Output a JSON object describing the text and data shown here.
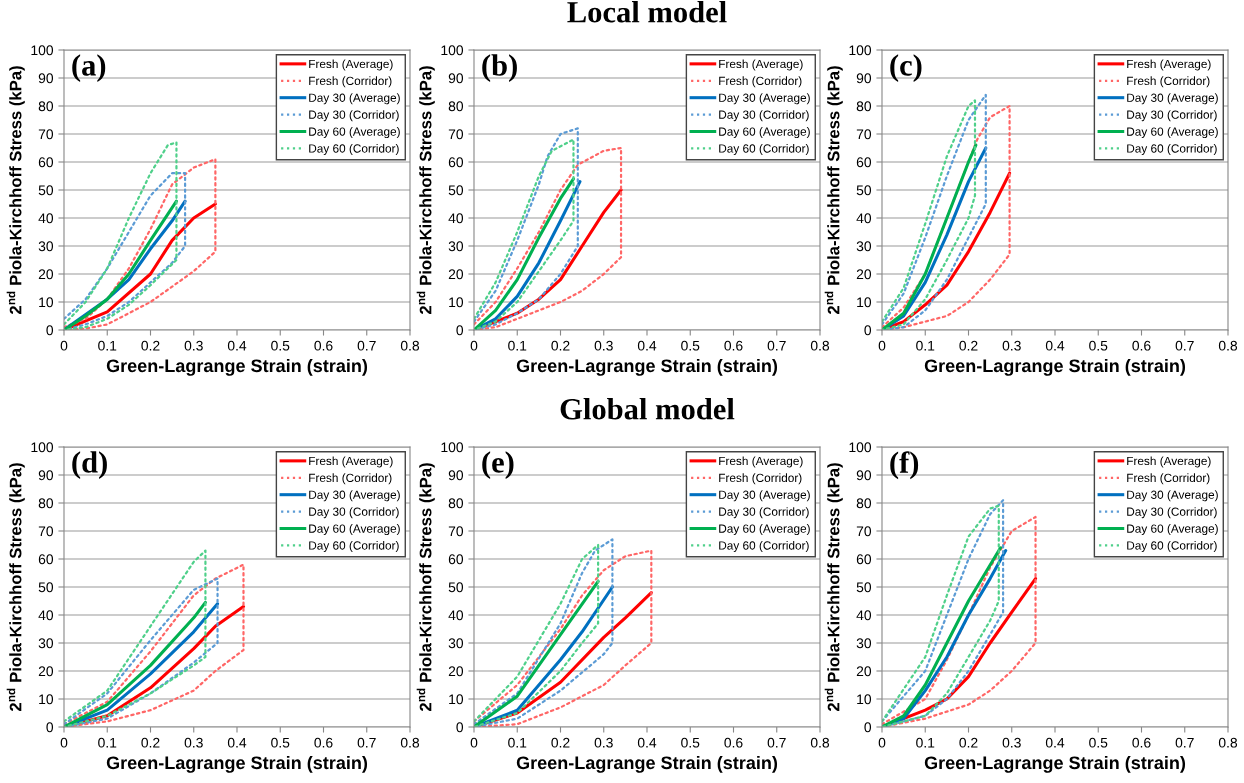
{
  "chart_data": [
    {
      "type": "line",
      "annotations": [
        "(a)"
      ],
      "xlabel": "Green-Lagrange Strain (strain)",
      "ylabel": "2$^{nd}$ Piola-Kirchhoff Stress (kPa)",
      "xlim": [
        0,
        0.8
      ],
      "xticks": [
        0,
        0.1,
        0.2,
        0.3,
        0.4,
        0.5,
        0.6,
        0.7,
        0.8
      ],
      "ylim": [
        0,
        100
      ],
      "yticks": [
        0,
        10,
        20,
        30,
        40,
        50,
        60,
        70,
        80,
        90,
        100
      ],
      "grid": "y",
      "legend": "top right",
      "series": [
        {
          "name": "Fresh (Average)",
          "color": "#ff0000",
          "line_style": "solid",
          "x": [
            0,
            0.1,
            0.2,
            0.25,
            0.3,
            0.35
          ],
          "values": [
            0,
            6.5,
            20,
            32,
            40,
            45
          ]
        },
        {
          "name": "Fresh (Corridor)",
          "color": "#ff6666",
          "line_style": "dotted",
          "x": [
            0,
            0.05,
            0.1,
            0.15,
            0.2,
            0.25,
            0.3,
            0.35,
            0.35,
            0.3,
            0.2,
            0.1,
            0.05,
            0
          ],
          "values": [
            1,
            4,
            11,
            22,
            36,
            52,
            58,
            61,
            28,
            21,
            10,
            2,
            0.5,
            0
          ]
        },
        {
          "name": "Day 30 (Average)",
          "color": "#0070c0",
          "line_style": "solid",
          "x": [
            0,
            0.1,
            0.15,
            0.2,
            0.25,
            0.28
          ],
          "values": [
            0,
            11,
            18,
            29,
            39,
            46
          ]
        },
        {
          "name": "Day 30 (Corridor)",
          "color": "#5b9bd5",
          "line_style": "dotted",
          "x": [
            0,
            0.05,
            0.1,
            0.15,
            0.2,
            0.25,
            0.28,
            0.28,
            0.25,
            0.2,
            0.15,
            0.1,
            0.05,
            0
          ],
          "values": [
            4,
            11,
            22,
            35,
            48,
            56,
            56,
            30,
            24,
            17,
            10,
            5,
            2,
            0
          ]
        },
        {
          "name": "Day 60 (Average)",
          "color": "#00b050",
          "line_style": "solid",
          "x": [
            0,
            0.05,
            0.1,
            0.15,
            0.2,
            0.26
          ],
          "values": [
            0,
            5,
            11,
            20,
            32,
            46
          ]
        },
        {
          "name": "Day 60 (Corridor)",
          "color": "#4fd08a",
          "line_style": "dotted",
          "x": [
            0,
            0.05,
            0.1,
            0.15,
            0.2,
            0.24,
            0.26,
            0.26,
            0.2,
            0.15,
            0.1,
            0.05,
            0
          ],
          "values": [
            2,
            10,
            22,
            40,
            56,
            66,
            67,
            25,
            16,
            9,
            4,
            1,
            0
          ]
        }
      ]
    },
    {
      "type": "line",
      "annotations": [
        "(b)"
      ],
      "title": "Local model",
      "xlabel": "Green-Lagrange Strain (strain)",
      "ylabel": "2$^{nd}$ Piola-Kirchhoff Stress (kPa)",
      "xlim": [
        0,
        0.8
      ],
      "xticks": [
        0,
        0.1,
        0.2,
        0.3,
        0.4,
        0.5,
        0.6,
        0.7,
        0.8
      ],
      "ylim": [
        0,
        100
      ],
      "yticks": [
        0,
        10,
        20,
        30,
        40,
        50,
        60,
        70,
        80,
        90,
        100
      ],
      "grid": "y",
      "legend": "top right",
      "series": [
        {
          "name": "Fresh (Average)",
          "color": "#ff0000",
          "line_style": "solid",
          "x": [
            0,
            0.1,
            0.15,
            0.2,
            0.25,
            0.3,
            0.34
          ],
          "values": [
            0,
            6,
            11,
            18,
            30,
            42,
            50
          ]
        },
        {
          "name": "Fresh (Corridor)",
          "color": "#ff6666",
          "line_style": "dotted",
          "x": [
            0,
            0.05,
            0.1,
            0.15,
            0.2,
            0.24,
            0.3,
            0.34,
            0.34,
            0.3,
            0.25,
            0.2,
            0.1,
            0.05,
            0
          ],
          "values": [
            2,
            10,
            22,
            35,
            50,
            59,
            64,
            65,
            26,
            20,
            14,
            10,
            4,
            1,
            0
          ]
        },
        {
          "name": "Day 30 (Average)",
          "color": "#0070c0",
          "line_style": "solid",
          "x": [
            0,
            0.05,
            0.1,
            0.15,
            0.2,
            0.245
          ],
          "values": [
            0,
            4,
            12,
            24,
            39,
            53
          ]
        },
        {
          "name": "Day 30 (Corridor)",
          "color": "#5b9bd5",
          "line_style": "dotted",
          "x": [
            0,
            0.05,
            0.1,
            0.15,
            0.17,
            0.2,
            0.24,
            0.24,
            0.2,
            0.15,
            0.1,
            0.05,
            0
          ],
          "values": [
            3,
            14,
            32,
            52,
            62,
            70,
            72,
            30,
            20,
            11,
            6,
            2,
            0
          ]
        },
        {
          "name": "Day 60 (Average)",
          "color": "#00b050",
          "line_style": "solid",
          "x": [
            0,
            0.05,
            0.1,
            0.15,
            0.2,
            0.23
          ],
          "values": [
            0,
            7,
            18,
            33,
            47,
            54
          ]
        },
        {
          "name": "Day 60 (Corridor)",
          "color": "#4fd08a",
          "line_style": "dotted",
          "x": [
            0,
            0.05,
            0.1,
            0.15,
            0.18,
            0.23,
            0.23,
            0.2,
            0.15,
            0.1,
            0.05,
            0
          ],
          "values": [
            4,
            17,
            35,
            55,
            64,
            68,
            39,
            32,
            21,
            10,
            3,
            0
          ]
        }
      ]
    },
    {
      "type": "line",
      "annotations": [
        "(c)"
      ],
      "xlabel": "Green-Lagrange Strain (strain)",
      "ylabel": "2$^{nd}$ Piola-Kirchhoff Stress (kPa)",
      "xlim": [
        0,
        0.8
      ],
      "xticks": [
        0,
        0.1,
        0.2,
        0.3,
        0.4,
        0.5,
        0.6,
        0.7,
        0.8
      ],
      "ylim": [
        0,
        100
      ],
      "yticks": [
        0,
        10,
        20,
        30,
        40,
        50,
        60,
        70,
        80,
        90,
        100
      ],
      "grid": "y",
      "legend": "top right",
      "series": [
        {
          "name": "Fresh (Average)",
          "color": "#ff0000",
          "line_style": "solid",
          "x": [
            0,
            0.05,
            0.1,
            0.15,
            0.2,
            0.25,
            0.295
          ],
          "values": [
            0,
            3,
            9,
            16,
            28,
            42,
            56
          ]
        },
        {
          "name": "Fresh (Corridor)",
          "color": "#ff6666",
          "line_style": "dotted",
          "x": [
            0,
            0.05,
            0.1,
            0.15,
            0.2,
            0.22,
            0.25,
            0.295,
            0.295,
            0.25,
            0.2,
            0.15,
            0.1,
            0.05,
            0
          ],
          "values": [
            1,
            8,
            20,
            40,
            60,
            68,
            76,
            80,
            27,
            18,
            10,
            5,
            3,
            1,
            0
          ]
        },
        {
          "name": "Day 30 (Average)",
          "color": "#0070c0",
          "line_style": "solid",
          "x": [
            0,
            0.05,
            0.1,
            0.15,
            0.2,
            0.24
          ],
          "values": [
            0,
            5,
            17,
            34,
            53,
            65
          ]
        },
        {
          "name": "Day 30 (Corridor)",
          "color": "#5b9bd5",
          "line_style": "dotted",
          "x": [
            0,
            0.05,
            0.1,
            0.15,
            0.2,
            0.24,
            0.24,
            0.2,
            0.15,
            0.1,
            0.05,
            0
          ],
          "values": [
            2,
            13,
            33,
            55,
            75,
            84,
            45,
            33,
            18,
            7,
            1,
            0
          ]
        },
        {
          "name": "Day 60 (Average)",
          "color": "#00b050",
          "line_style": "solid",
          "x": [
            0,
            0.05,
            0.1,
            0.15,
            0.2,
            0.217
          ],
          "values": [
            0,
            6,
            20,
            40,
            60,
            66
          ]
        },
        {
          "name": "Day 60 (Corridor)",
          "color": "#4fd08a",
          "line_style": "dotted",
          "x": [
            0,
            0.05,
            0.1,
            0.15,
            0.2,
            0.215,
            0.215,
            0.2,
            0.15,
            0.1,
            0.05,
            0
          ],
          "values": [
            3,
            15,
            38,
            62,
            80,
            82,
            48,
            40,
            25,
            11,
            2,
            0
          ]
        }
      ]
    },
    {
      "type": "line",
      "annotations": [
        "(d)"
      ],
      "xlabel": "Green-Lagrange Strain (strain)",
      "ylabel": "2$^{nd}$ Piola-Kirchhoff Stress (kPa)",
      "xlim": [
        0,
        0.8
      ],
      "xticks": [
        0,
        0.1,
        0.2,
        0.3,
        0.4,
        0.5,
        0.6,
        0.7,
        0.8
      ],
      "ylim": [
        0,
        100
      ],
      "yticks": [
        0,
        10,
        20,
        30,
        40,
        50,
        60,
        70,
        80,
        90,
        100
      ],
      "grid": "y",
      "legend": "top right",
      "series": [
        {
          "name": "Fresh (Average)",
          "color": "#ff0000",
          "line_style": "solid",
          "x": [
            0,
            0.1,
            0.2,
            0.3,
            0.35,
            0.415
          ],
          "values": [
            0,
            4,
            14,
            28,
            36,
            43
          ]
        },
        {
          "name": "Fresh (Corridor)",
          "color": "#ff6666",
          "line_style": "dotted",
          "x": [
            0,
            0.1,
            0.2,
            0.3,
            0.35,
            0.415,
            0.415,
            0.35,
            0.3,
            0.2,
            0.1,
            0
          ],
          "values": [
            1,
            9,
            27,
            47,
            53,
            58,
            27.5,
            20,
            13,
            6,
            2,
            0
          ]
        },
        {
          "name": "Day 30 (Average)",
          "color": "#0070c0",
          "line_style": "solid",
          "x": [
            0,
            0.1,
            0.2,
            0.3,
            0.355
          ],
          "values": [
            0,
            6,
            19,
            34,
            44
          ]
        },
        {
          "name": "Day 30 (Corridor)",
          "color": "#5b9bd5",
          "line_style": "dotted",
          "x": [
            0,
            0.1,
            0.2,
            0.3,
            0.355,
            0.355,
            0.3,
            0.2,
            0.1,
            0
          ],
          "values": [
            1,
            12,
            31,
            49,
            53,
            30,
            23,
            12,
            3,
            0
          ]
        },
        {
          "name": "Day 60 (Average)",
          "color": "#00b050",
          "line_style": "solid",
          "x": [
            0,
            0.1,
            0.2,
            0.3,
            0.327
          ],
          "values": [
            0,
            8,
            22,
            39,
            44.5
          ]
        },
        {
          "name": "Day 60 (Corridor)",
          "color": "#4fd08a",
          "line_style": "dotted",
          "x": [
            0,
            0.1,
            0.2,
            0.3,
            0.327,
            0.327,
            0.3,
            0.2,
            0.1,
            0
          ],
          "values": [
            2,
            13,
            36,
            59,
            63,
            25,
            22,
            12,
            4,
            0
          ]
        }
      ]
    },
    {
      "type": "line",
      "annotations": [
        "(e)"
      ],
      "title": "Global model",
      "xlabel": "Green-Lagrange Strain (strain)",
      "ylabel": "2$^{nd}$ Piola-Kirchhoff Stress (kPa)",
      "xlim": [
        0,
        0.8
      ],
      "xticks": [
        0,
        0.1,
        0.2,
        0.3,
        0.4,
        0.5,
        0.6,
        0.7,
        0.8
      ],
      "ylim": [
        0,
        100
      ],
      "yticks": [
        0,
        10,
        20,
        30,
        40,
        50,
        60,
        70,
        80,
        90,
        100
      ],
      "grid": "y",
      "legend": "top right",
      "series": [
        {
          "name": "Fresh (Average)",
          "color": "#ff0000",
          "line_style": "solid",
          "x": [
            0,
            0.1,
            0.2,
            0.3,
            0.35,
            0.41
          ],
          "values": [
            0,
            5,
            16,
            32,
            39,
            48
          ]
        },
        {
          "name": "Fresh (Corridor)",
          "color": "#ff6666",
          "line_style": "dotted",
          "x": [
            0,
            0.1,
            0.2,
            0.25,
            0.3,
            0.35,
            0.41,
            0.41,
            0.35,
            0.3,
            0.2,
            0.1,
            0
          ],
          "values": [
            2,
            15,
            35,
            47,
            56,
            61,
            63,
            30,
            22,
            15,
            7,
            1,
            0
          ]
        },
        {
          "name": "Day 30 (Average)",
          "color": "#0070c0",
          "line_style": "solid",
          "x": [
            0,
            0.1,
            0.2,
            0.25,
            0.32
          ],
          "values": [
            0,
            6,
            24,
            34,
            50
          ]
        },
        {
          "name": "Day 30 (Corridor)",
          "color": "#5b9bd5",
          "line_style": "dotted",
          "x": [
            0,
            0.1,
            0.2,
            0.25,
            0.28,
            0.32,
            0.32,
            0.3,
            0.2,
            0.1,
            0
          ],
          "values": [
            1,
            12,
            37,
            55,
            63,
            67,
            30,
            26,
            13,
            3,
            0
          ]
        },
        {
          "name": "Day 60 (Average)",
          "color": "#00b050",
          "line_style": "solid",
          "x": [
            0,
            0.1,
            0.2,
            0.287
          ],
          "values": [
            0,
            11,
            33,
            52
          ]
        },
        {
          "name": "Day 60 (Corridor)",
          "color": "#4fd08a",
          "line_style": "dotted",
          "x": [
            0,
            0.1,
            0.2,
            0.25,
            0.287,
            0.287,
            0.25,
            0.2,
            0.1,
            0
          ],
          "values": [
            2,
            18,
            44,
            60,
            65,
            37,
            30,
            20,
            5,
            0
          ]
        }
      ]
    },
    {
      "type": "line",
      "annotations": [
        "(f)"
      ],
      "xlabel": "Green-Lagrange Strain (strain)",
      "ylabel": "2$^{nd}$ Piola-Kirchhoff Stress (kPa)",
      "xlim": [
        0,
        0.8
      ],
      "xticks": [
        0,
        0.1,
        0.2,
        0.3,
        0.4,
        0.5,
        0.6,
        0.7,
        0.8
      ],
      "ylim": [
        0,
        100
      ],
      "yticks": [
        0,
        10,
        20,
        30,
        40,
        50,
        60,
        70,
        80,
        90,
        100
      ],
      "grid": "y",
      "legend": "top right",
      "series": [
        {
          "name": "Fresh (Average)",
          "color": "#ff0000",
          "line_style": "solid",
          "x": [
            0,
            0.1,
            0.15,
            0.2,
            0.25,
            0.3,
            0.355
          ],
          "values": [
            0,
            6,
            10,
            18,
            30,
            41,
            53
          ]
        },
        {
          "name": "Fresh (Corridor)",
          "color": "#ff6666",
          "line_style": "dotted",
          "x": [
            0,
            0.1,
            0.15,
            0.2,
            0.25,
            0.3,
            0.355,
            0.355,
            0.3,
            0.25,
            0.2,
            0.1,
            0
          ],
          "values": [
            1,
            10,
            24,
            40,
            57,
            70,
            75,
            30,
            20,
            13,
            8,
            3,
            0
          ]
        },
        {
          "name": "Day 30 (Average)",
          "color": "#0070c0",
          "line_style": "solid",
          "x": [
            0,
            0.05,
            0.1,
            0.15,
            0.2,
            0.25,
            0.286
          ],
          "values": [
            0,
            3,
            13,
            25,
            40,
            53,
            63
          ]
        },
        {
          "name": "Day 30 (Corridor)",
          "color": "#5b9bd5",
          "line_style": "dotted",
          "x": [
            0,
            0.1,
            0.15,
            0.2,
            0.25,
            0.28,
            0.28,
            0.25,
            0.2,
            0.15,
            0.1,
            0
          ],
          "values": [
            2,
            20,
            40,
            60,
            76,
            81,
            41,
            33,
            20,
            10,
            4,
            0
          ]
        },
        {
          "name": "Day 60 (Average)",
          "color": "#00b050",
          "line_style": "solid",
          "x": [
            0,
            0.05,
            0.1,
            0.15,
            0.2,
            0.274
          ],
          "values": [
            0,
            4,
            15,
            30,
            45,
            64
          ]
        },
        {
          "name": "Day 60 (Corridor)",
          "color": "#4fd08a",
          "line_style": "dotted",
          "x": [
            0,
            0.1,
            0.15,
            0.2,
            0.25,
            0.27,
            0.27,
            0.25,
            0.2,
            0.15,
            0.1,
            0
          ],
          "values": [
            2,
            25,
            47,
            68,
            78,
            79,
            45,
            38,
            25,
            12,
            4,
            0
          ]
        }
      ]
    }
  ]
}
